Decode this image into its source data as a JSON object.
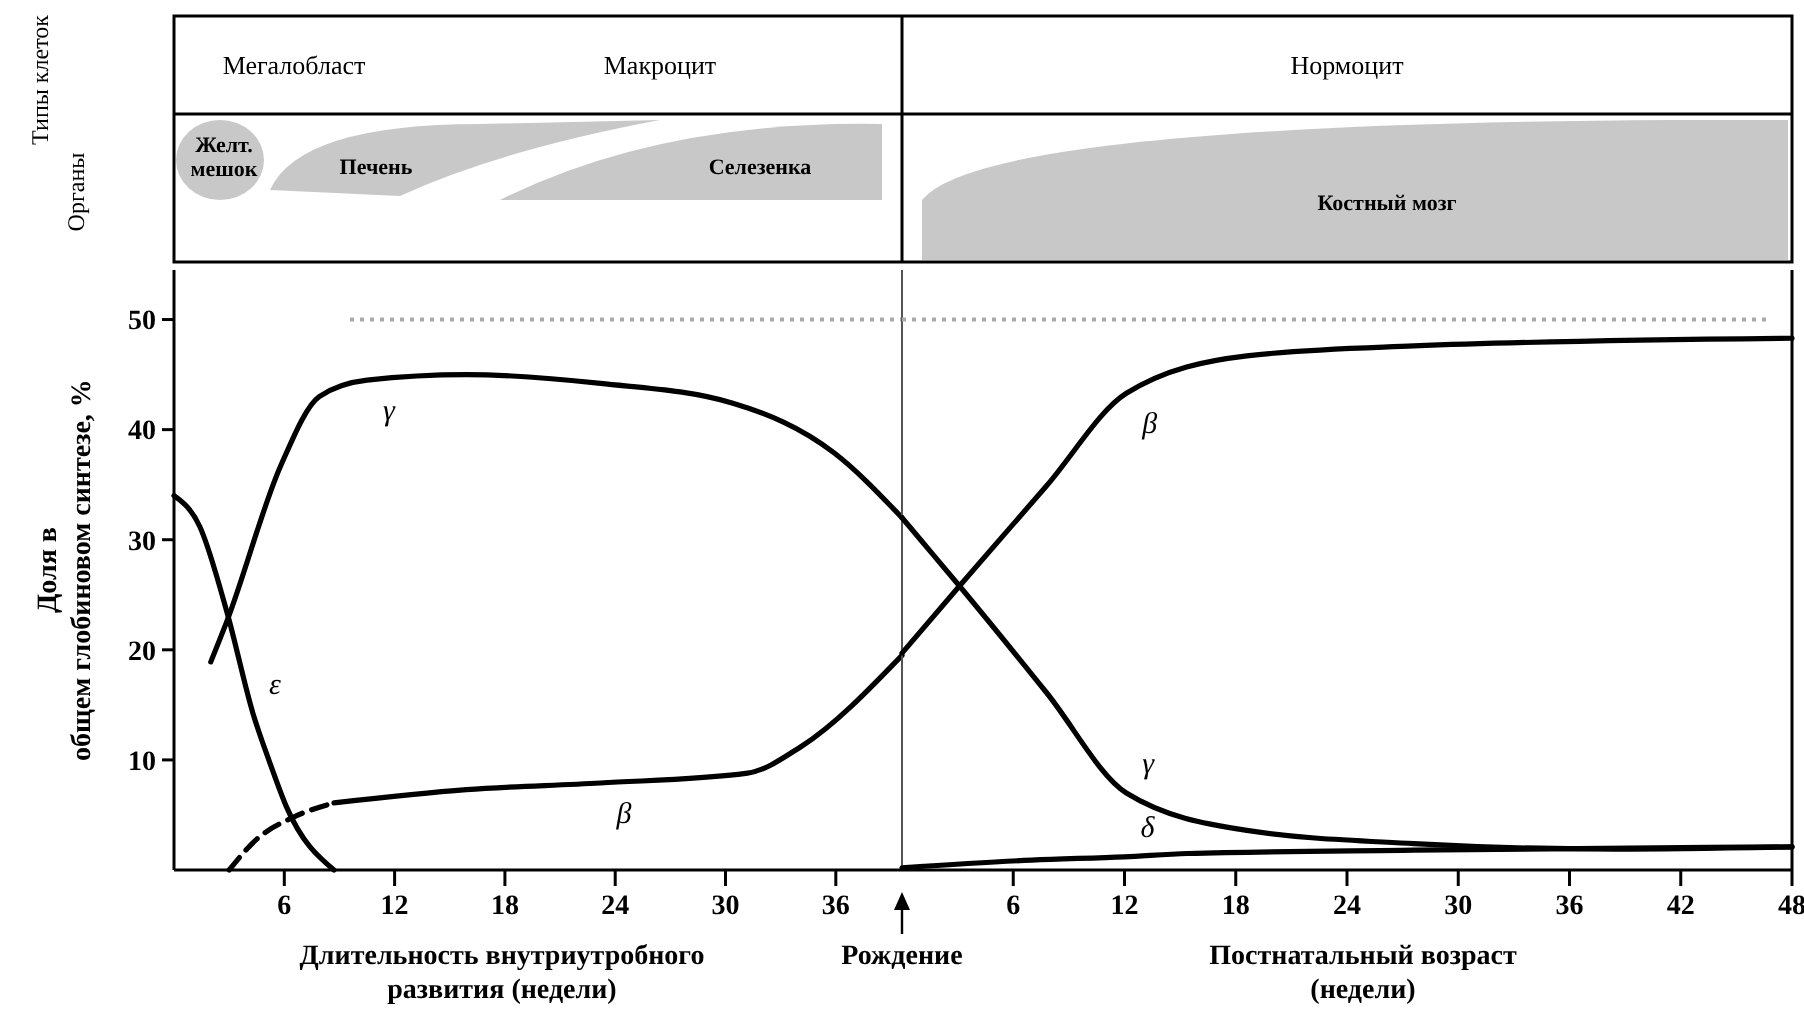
{
  "chart_data": [
    {
      "type": "line",
      "xlabel": "Длительность внутриутробного развития (недели)",
      "ylabel": "Доля в общем глобиновом синтезе, %",
      "xlim": [
        0,
        39.6
      ],
      "ylim": [
        0,
        54.5
      ],
      "xticks": [
        6,
        12,
        18,
        24,
        30,
        36
      ],
      "yticks": [
        10,
        20,
        30,
        40,
        50
      ],
      "marker": "none",
      "series": [
        {
          "name": "ε",
          "color": "#000000",
          "x": [
            0,
            1.4,
            2.9,
            4.3,
            5.2,
            6.1,
            8.7
          ],
          "values": [
            34,
            31.2,
            23.3,
            14.2,
            9.8,
            5.8,
            0
          ]
        },
        {
          "name": "γ",
          "color": "#000000",
          "x": [
            2.0,
            2.9,
            5.8,
            7.9,
            10.5,
            15.9,
            23.2,
            30.4,
            35.9,
            39.6
          ],
          "values": [
            18.9,
            22.7,
            36.7,
            43,
            44.5,
            45,
            44.2,
            42.4,
            37.9,
            32
          ]
        },
        {
          "color": "#000000",
          "line_style": "dashed",
          "x": [
            3.0,
            4.5,
            6.5,
            8.7
          ],
          "values": [
            0,
            2.8,
            4.8,
            6.1
          ]
        },
        {
          "name": "β",
          "color": "#000000",
          "x": [
            8.7,
            15.9,
            23.2,
            31.2,
            34.1,
            39.6
          ],
          "values": [
            6.1,
            7.3,
            7.9,
            8.8,
            11.2,
            19.5
          ]
        }
      ],
      "ref_lines": [
        {
          "axis": "y",
          "value": 50,
          "color": "#aaaaaa",
          "line_style": "dotted"
        }
      ],
      "annotations": [
        "Типы клеток",
        "Органы",
        "Мегалобласт",
        "Макроцит",
        "Нормоцит",
        "Желт. мешок",
        "Печень",
        "Селезенка",
        "Костный мозг"
      ]
    },
    {
      "type": "line",
      "xlabel": "Постнатальный возраст (недели)",
      "xlim": [
        0,
        48
      ],
      "ylim": [
        0,
        54.5
      ],
      "xticks": [
        6,
        12,
        18,
        24,
        30,
        36,
        42,
        48
      ],
      "tick_labels": "x",
      "marker": "none",
      "series": [
        {
          "name": "γ",
          "color": "#000000",
          "x": [
            0,
            1,
            3.1,
            7.8,
            12.1,
            18.6,
            27.6,
            38.4,
            48
          ],
          "values": [
            32,
            30,
            25.8,
            16.1,
            7,
            3.6,
            2.4,
            1.9,
            2.1
          ]
        },
        {
          "name": "β",
          "color": "#000000",
          "x": [
            0,
            3.1,
            7.8,
            12.1,
            18.6,
            27.6,
            48
          ],
          "values": [
            19.7,
            25.8,
            34.9,
            43.3,
            46.7,
            47.6,
            48.3
          ]
        },
        {
          "name": "δ",
          "color": "#000000",
          "x": [
            0,
            7,
            12,
            15.4,
            27.6,
            48
          ],
          "values": [
            0.2,
            0.9,
            1.2,
            1.5,
            1.8,
            2.1
          ]
        }
      ],
      "ref_lines": [
        {
          "axis": "y",
          "value": 50,
          "color": "#aaaaaa",
          "line_style": "dotted"
        }
      ],
      "annotations": [
        "Рождение"
      ]
    }
  ]
}
